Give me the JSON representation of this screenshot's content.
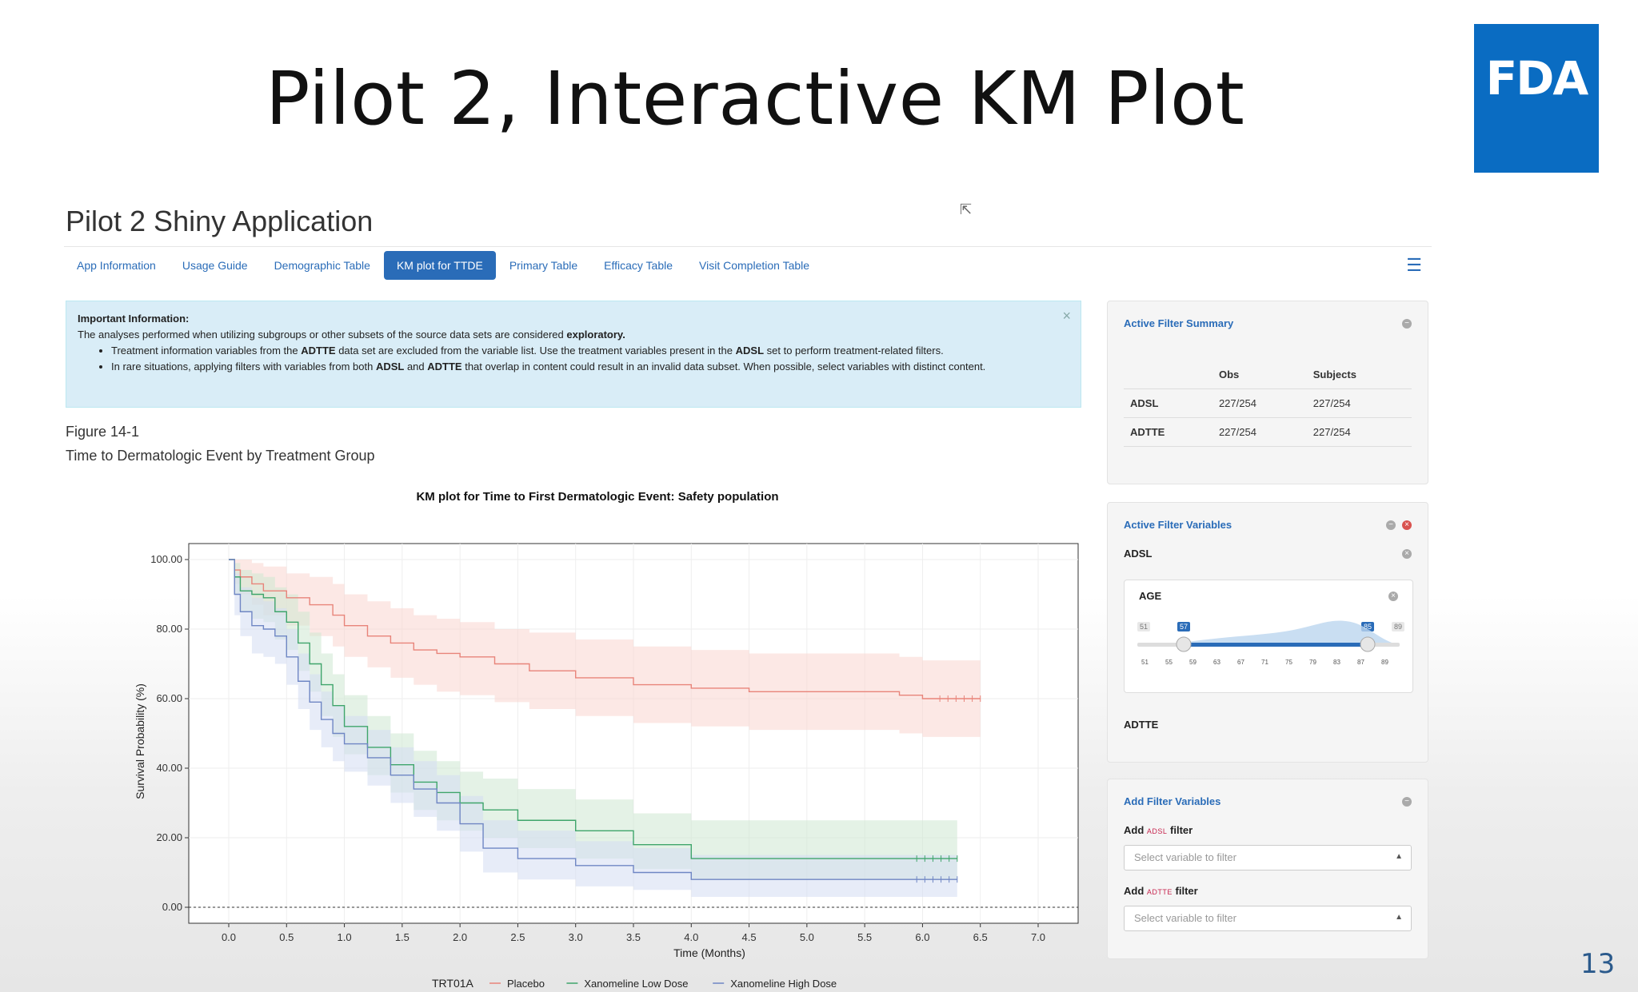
{
  "slide": {
    "title": "Pilot 2, Interactive KM Plot",
    "logo_text": "FDA",
    "page_number": "13"
  },
  "app": {
    "title": "Pilot 2 Shiny Application",
    "tabs": [
      "App Information",
      "Usage Guide",
      "Demographic Table",
      "KM plot for TTDE",
      "Primary Table",
      "Efficacy Table",
      "Visit Completion Table"
    ],
    "active_tab": "KM plot for TTDE"
  },
  "alert": {
    "heading": "Important Information:",
    "intro": "The analyses performed when utilizing subgroups or other subsets of the source data sets are considered",
    "intro_bold": "exploratory.",
    "bullet1": {
      "a": "Treatment information variables from the ",
      "b": "ADTTE",
      "c": " data set are excluded from the variable list. Use the treatment variables present in the ",
      "d": "ADSL",
      "e": " set to perform treatment-related filters."
    },
    "bullet2": {
      "a": "In rare situations, applying filters with variables from both ",
      "b": "ADSL",
      "c": " and ",
      "d": "ADTTE",
      "e": " that overlap in content could result in an invalid data subset. When possible, select variables with distinct content."
    }
  },
  "figure": {
    "number": "Figure 14-1",
    "title": "Time to Dermatologic Event by Treatment Group"
  },
  "chart_data": {
    "type": "line",
    "title": "KM plot for Time to First Dermatologic Event: Safety population",
    "xlabel": "Time (Months)",
    "ylabel": "Survival Probability (%)",
    "xlim": [
      0.0,
      7.0
    ],
    "ylim": [
      0.0,
      100.0
    ],
    "x_ticks": [
      "0.0",
      "0.5",
      "1.0",
      "1.5",
      "2.0",
      "2.5",
      "3.0",
      "3.5",
      "4.0",
      "4.5",
      "5.0",
      "5.5",
      "6.0",
      "6.5",
      "7.0"
    ],
    "y_ticks": [
      "0.00",
      "20.00",
      "40.00",
      "60.00",
      "80.00",
      "100.00"
    ],
    "legend_title": "TRT01A",
    "legend_position": "bottom",
    "grid": true,
    "series": [
      {
        "name": "Placebo",
        "color": "#e8847a",
        "band": "#f9d6d0",
        "x": [
          0.0,
          0.05,
          0.1,
          0.2,
          0.3,
          0.5,
          0.7,
          0.9,
          1.0,
          1.2,
          1.4,
          1.6,
          1.8,
          2.0,
          2.3,
          2.6,
          3.0,
          3.5,
          4.0,
          4.5,
          5.0,
          5.5,
          5.8,
          6.0,
          6.5
        ],
        "y": [
          100,
          97,
          95,
          93,
          91,
          89,
          87,
          84,
          81,
          78,
          76,
          74,
          73,
          72,
          70,
          68,
          66,
          64,
          63,
          62,
          62,
          62,
          61,
          60,
          60
        ],
        "lower": [
          100,
          93,
          90,
          87,
          84,
          81,
          78,
          75,
          72,
          69,
          66,
          64,
          62,
          61,
          59,
          57,
          55,
          53,
          52,
          51,
          51,
          51,
          50,
          49,
          49
        ],
        "upper": [
          100,
          100,
          100,
          99,
          98,
          96,
          95,
          93,
          90,
          88,
          86,
          84,
          83,
          82,
          80,
          79,
          77,
          75,
          74,
          73,
          73,
          73,
          72,
          71,
          71
        ]
      },
      {
        "name": "Xanomeline Low Dose",
        "color": "#3fa56b",
        "band": "#cde8d2",
        "x": [
          0.0,
          0.05,
          0.1,
          0.2,
          0.3,
          0.4,
          0.5,
          0.6,
          0.7,
          0.8,
          0.9,
          1.0,
          1.2,
          1.4,
          1.6,
          1.8,
          2.0,
          2.2,
          2.5,
          3.0,
          3.5,
          4.0,
          4.5,
          5.0,
          5.5,
          6.0,
          6.3
        ],
        "y": [
          100,
          95,
          91,
          90,
          89,
          85,
          82,
          76,
          70,
          64,
          58,
          52,
          46,
          41,
          36,
          33,
          30,
          28,
          25,
          22,
          18,
          14,
          14,
          14,
          14,
          14,
          14
        ],
        "lower": [
          100,
          90,
          85,
          83,
          82,
          77,
          74,
          68,
          62,
          55,
          49,
          44,
          38,
          33,
          28,
          25,
          22,
          20,
          17,
          14,
          11,
          8,
          8,
          8,
          8,
          8,
          8
        ],
        "upper": [
          100,
          99,
          97,
          96,
          95,
          92,
          90,
          85,
          79,
          73,
          67,
          61,
          55,
          50,
          45,
          42,
          39,
          37,
          34,
          31,
          27,
          25,
          25,
          25,
          25,
          25,
          25
        ]
      },
      {
        "name": "Xanomeline High Dose",
        "color": "#6f86c4",
        "band": "#d4dcf2",
        "x": [
          0.0,
          0.05,
          0.1,
          0.2,
          0.3,
          0.4,
          0.5,
          0.6,
          0.7,
          0.8,
          0.9,
          1.0,
          1.2,
          1.4,
          1.6,
          1.8,
          2.0,
          2.2,
          2.5,
          3.0,
          3.5,
          4.0,
          4.5,
          5.0,
          5.5,
          6.0,
          6.3
        ],
        "y": [
          100,
          90,
          85,
          81,
          80,
          78,
          72,
          65,
          59,
          54,
          50,
          47,
          43,
          38,
          34,
          30,
          24,
          17,
          14,
          12,
          10,
          8,
          8,
          8,
          8,
          8,
          8
        ],
        "lower": [
          100,
          84,
          78,
          73,
          72,
          70,
          64,
          57,
          51,
          46,
          42,
          39,
          35,
          30,
          26,
          22,
          16,
          10,
          8,
          6,
          5,
          3,
          3,
          3,
          3,
          3,
          3
        ],
        "upper": [
          100,
          96,
          92,
          89,
          88,
          86,
          80,
          73,
          67,
          62,
          58,
          55,
          51,
          46,
          42,
          38,
          32,
          25,
          22,
          19,
          17,
          15,
          15,
          15,
          15,
          15,
          15
        ]
      }
    ]
  },
  "filter_summary": {
    "title": "Active Filter Summary",
    "columns": [
      "",
      "Obs",
      "Subjects"
    ],
    "rows": [
      {
        "name": "ADSL",
        "obs": "227/254",
        "subjects": "227/254"
      },
      {
        "name": "ADTTE",
        "obs": "227/254",
        "subjects": "227/254"
      }
    ]
  },
  "filter_variables": {
    "title": "Active Filter Variables",
    "adsl_label": "ADSL",
    "adtte_label": "ADTTE",
    "age": {
      "label": "AGE",
      "min": "51",
      "max": "89",
      "low": "57",
      "high": "85",
      "ticks": [
        "51",
        "55",
        "59",
        "63",
        "67",
        "71",
        "75",
        "79",
        "83",
        "87",
        "89"
      ]
    }
  },
  "add_filter": {
    "title": "Add Filter Variables",
    "add_word": "Add",
    "filter_word": "filter",
    "adsl_tag": "ADSL",
    "adtte_tag": "ADTTE",
    "adsl_placeholder": "Select variable to filter",
    "adtte_placeholder": "Select variable to filter"
  }
}
